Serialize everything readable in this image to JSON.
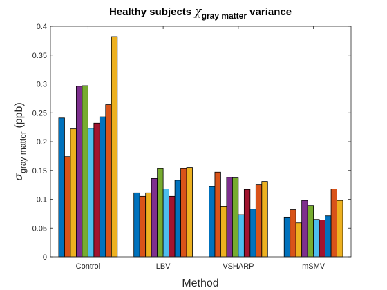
{
  "chart_data": {
    "type": "bar",
    "title_prefix": "Healthy subjects ",
    "title_symbol": "χ",
    "title_subscript": "gray matter",
    "title_suffix": " variance",
    "xlabel": "Method",
    "ylabel_symbol": "σ",
    "ylabel_subscript": "gray matter",
    "ylabel_suffix": " (ppb)",
    "categories": [
      "Control",
      "LBV",
      "VSHARP",
      "mSMV"
    ],
    "ylim": [
      0,
      0.4
    ],
    "yticks": [
      0,
      0.05,
      0.1,
      0.15,
      0.2,
      0.25,
      0.3,
      0.35,
      0.4
    ],
    "ytick_labels": [
      "0",
      "0.05",
      "0.1",
      "0.15",
      "0.2",
      "0.25",
      "0.3",
      "0.35",
      "0.4"
    ],
    "grid": false,
    "legend": "none",
    "series": [
      {
        "color": "#0072BD",
        "values": [
          0.241,
          0.111,
          0.122,
          0.069
        ]
      },
      {
        "color": "#D95319",
        "values": [
          0.174,
          0.105,
          0.147,
          0.082
        ]
      },
      {
        "color": "#EDB120",
        "values": [
          0.222,
          0.111,
          0.087,
          0.059
        ]
      },
      {
        "color": "#7E2F8E",
        "values": [
          0.296,
          0.136,
          0.138,
          0.098
        ]
      },
      {
        "color": "#77AC30",
        "values": [
          0.297,
          0.153,
          0.137,
          0.089
        ]
      },
      {
        "color": "#4DBEEE",
        "values": [
          0.223,
          0.118,
          0.073,
          0.065
        ]
      },
      {
        "color": "#A2142F",
        "values": [
          0.232,
          0.105,
          0.117,
          0.064
        ]
      },
      {
        "color": "#0072BD",
        "values": [
          0.243,
          0.133,
          0.083,
          0.071
        ]
      },
      {
        "color": "#D95319",
        "values": [
          0.264,
          0.153,
          0.125,
          0.118
        ]
      },
      {
        "color": "#EDB120",
        "values": [
          0.382,
          0.155,
          0.131,
          0.098
        ]
      }
    ]
  }
}
